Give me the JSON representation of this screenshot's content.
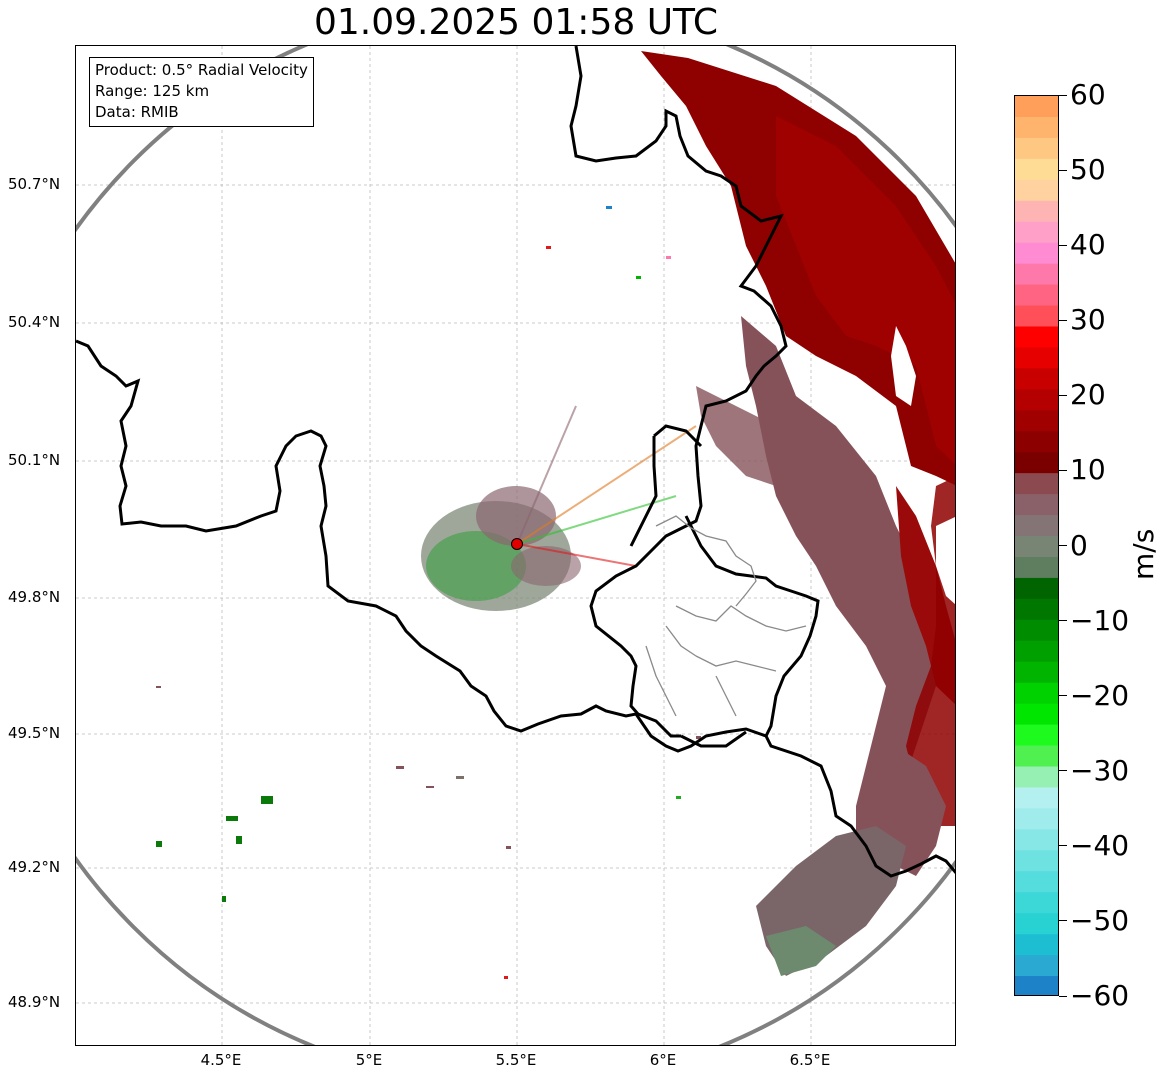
{
  "title": "01.09.2025 01:58 UTC",
  "info_box": {
    "product": "Product: 0.5° Radial Velocity",
    "range": "Range: 125 km",
    "data": "Data: RMIB"
  },
  "latitude_labels": [
    "50.7°N",
    "50.4°N",
    "50.1°N",
    "49.8°N",
    "49.5°N",
    "49.2°N",
    "48.9°N"
  ],
  "longitude_labels": [
    "4.5°E",
    "5°E",
    "5.5°E",
    "6°E",
    "6.5°E"
  ],
  "colorbar": {
    "unit": "m/s",
    "ticks": [
      "60",
      "50",
      "40",
      "30",
      "20",
      "10",
      "0",
      "−10",
      "−20",
      "−30",
      "−40",
      "−50",
      "−60"
    ],
    "min": -60,
    "max": 60,
    "colors_top_to_bottom": [
      "#ff9f5a",
      "#ffb46e",
      "#ffc882",
      "#ffdc96",
      "#ffd2a0",
      "#ffb4b4",
      "#ffa0c8",
      "#ff8cd2",
      "#ff78aa",
      "#ff6482",
      "#ff505a",
      "#ff0000",
      "#e60000",
      "#c80000",
      "#b40000",
      "#a00000",
      "#8c0000",
      "#7a0000",
      "#8b4a4f",
      "#8a6168",
      "#857476",
      "#788474",
      "#5f7e5f",
      "#006400",
      "#007800",
      "#008c00",
      "#00a000",
      "#00b400",
      "#00d200",
      "#00e600",
      "#1efa1e",
      "#50f050",
      "#96f0b4",
      "#b4f0f0",
      "#a0ebeb",
      "#87e6e6",
      "#6ee1e1",
      "#55dcdc",
      "#3cd7d7",
      "#28d2d2",
      "#1ebed2",
      "#2aaad2",
      "#1e82c8"
    ]
  },
  "map": {
    "radar_site": "Radar site",
    "range_ring_color": "#808080",
    "border_color": "#000000",
    "province_color": "#8a8a8a"
  }
}
